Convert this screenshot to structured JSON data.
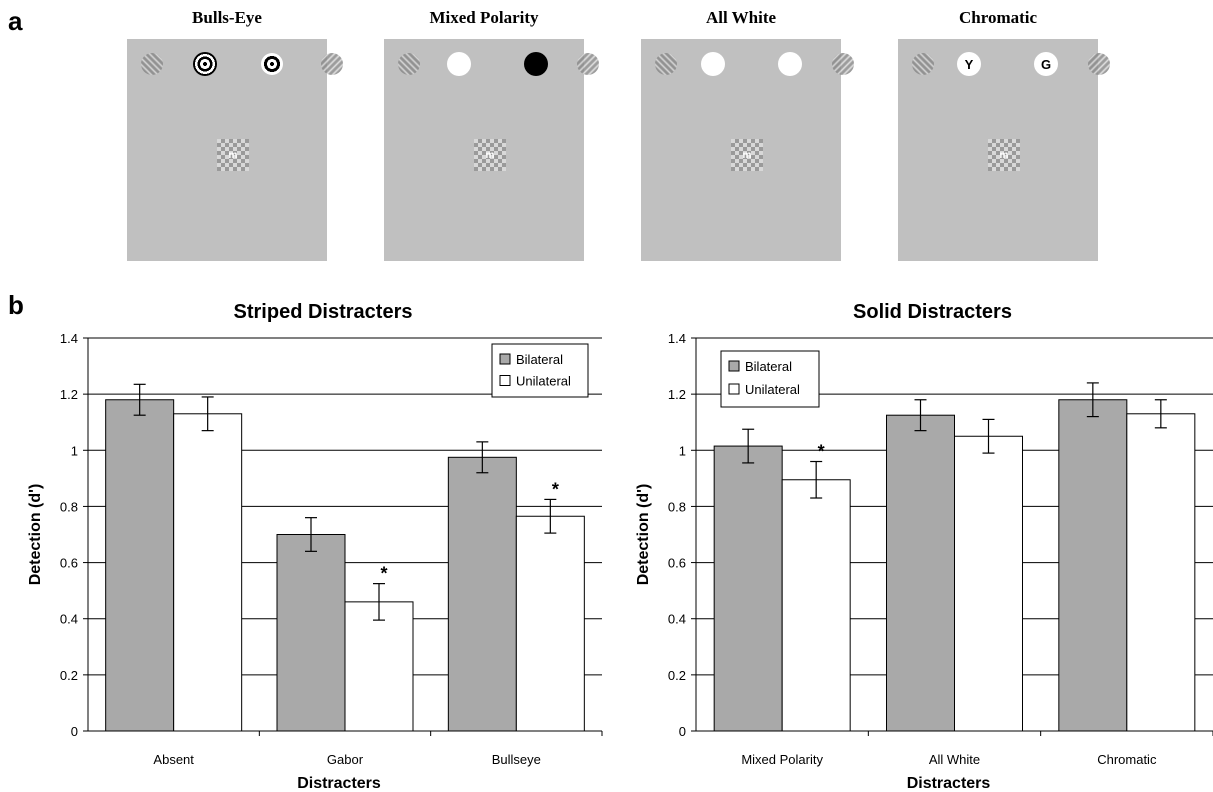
{
  "panel_a_label": "a",
  "panel_b_label": "b",
  "stimuli": [
    {
      "title": "Bulls-Eye",
      "left_disc": "bullseye",
      "right_disc": "bullseye",
      "left_letter": "",
      "right_letter": "",
      "target_letter": "m"
    },
    {
      "title": "Mixed Polarity",
      "left_disc": "white",
      "right_disc": "black",
      "left_letter": "",
      "right_letter": "",
      "target_letter": "m"
    },
    {
      "title": "All White",
      "left_disc": "white",
      "right_disc": "white",
      "left_letter": "",
      "right_letter": "",
      "target_letter": "m"
    },
    {
      "title": "Chromatic",
      "left_disc": "white",
      "right_disc": "white",
      "left_letter": "Y",
      "right_letter": "G",
      "target_letter": "m"
    }
  ],
  "colors": {
    "bilateral": "#a9a9a9",
    "unilateral": "#ffffff",
    "background_stim": "#c0c0c0"
  },
  "chart_data": [
    {
      "type": "bar",
      "title": "Striped Distracters",
      "xlabel": "Distracters",
      "ylabel": "Detection (d')",
      "categories": [
        "Absent",
        "Gabor",
        "Bullseye"
      ],
      "ylim": [
        0,
        1.4
      ],
      "yticks": [
        0,
        0.2,
        0.4,
        0.6,
        0.8,
        1,
        1.2,
        1.4
      ],
      "ytick_labels": [
        "0",
        "0.2",
        "0.4",
        "0.6",
        "0.8",
        "1",
        "1.2",
        "1.4"
      ],
      "grid": true,
      "legend_position": "top-right",
      "series": [
        {
          "name": "Bilateral",
          "values": [
            1.18,
            0.7,
            0.975
          ],
          "errors": [
            0.055,
            0.06,
            0.055
          ],
          "color": "#a9a9a9"
        },
        {
          "name": "Unilateral",
          "values": [
            1.13,
            0.46,
            0.765
          ],
          "errors": [
            0.06,
            0.065,
            0.06
          ],
          "color": "#ffffff"
        }
      ],
      "significance": [
        {
          "category": "Gabor",
          "series": "Unilateral",
          "marker": "*"
        },
        {
          "category": "Bullseye",
          "series": "Unilateral",
          "marker": "*"
        }
      ]
    },
    {
      "type": "bar",
      "title": "Solid Distracters",
      "xlabel": "Distracters",
      "ylabel": "Detection (d')",
      "categories": [
        "Mixed Polarity",
        "All White",
        "Chromatic"
      ],
      "ylim": [
        0,
        1.4
      ],
      "yticks": [
        0,
        0.2,
        0.4,
        0.6,
        0.8,
        1,
        1.2,
        1.4
      ],
      "ytick_labels": [
        "0",
        "0.2",
        "0.4",
        "0.6",
        "0.8",
        "1",
        "1.2",
        "1.4"
      ],
      "grid": true,
      "legend_position": "top-left",
      "series": [
        {
          "name": "Bilateral",
          "values": [
            1.015,
            1.125,
            1.18
          ],
          "errors": [
            0.06,
            0.055,
            0.06
          ],
          "color": "#a9a9a9"
        },
        {
          "name": "Unilateral",
          "values": [
            0.895,
            1.05,
            1.13
          ],
          "errors": [
            0.065,
            0.06,
            0.05
          ],
          "color": "#ffffff"
        }
      ],
      "significance": [
        {
          "category": "Mixed Polarity",
          "series": "Unilateral",
          "marker": "*"
        }
      ]
    }
  ]
}
